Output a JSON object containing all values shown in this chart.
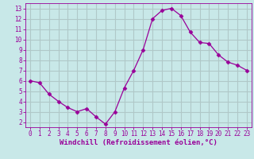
{
  "x": [
    0,
    1,
    2,
    3,
    4,
    5,
    6,
    7,
    8,
    9,
    10,
    11,
    12,
    13,
    14,
    15,
    16,
    17,
    18,
    19,
    20,
    21,
    22,
    23
  ],
  "y": [
    6.0,
    5.8,
    4.7,
    4.0,
    3.4,
    3.0,
    3.3,
    2.5,
    1.8,
    3.0,
    5.3,
    7.0,
    9.0,
    12.0,
    12.8,
    13.0,
    12.3,
    10.7,
    9.7,
    9.6,
    8.5,
    7.8,
    7.5,
    7.0
  ],
  "line_color": "#990099",
  "marker": "D",
  "marker_size": 2.5,
  "bg_color": "#c8e8e8",
  "grid_color": "#b0c8c8",
  "xlabel": "Windchill (Refroidissement éolien,°C)",
  "xlabel_color": "#990099",
  "tick_color": "#990099",
  "spine_color": "#990099",
  "ylim": [
    1.5,
    13.5
  ],
  "xlim": [
    -0.5,
    23.5
  ],
  "yticks": [
    2,
    3,
    4,
    5,
    6,
    7,
    8,
    9,
    10,
    11,
    12,
    13
  ],
  "xticks": [
    0,
    1,
    2,
    3,
    4,
    5,
    6,
    7,
    8,
    9,
    10,
    11,
    12,
    13,
    14,
    15,
    16,
    17,
    18,
    19,
    20,
    21,
    22,
    23
  ],
  "tick_fontsize": 5.5,
  "xlabel_fontsize": 6.5
}
